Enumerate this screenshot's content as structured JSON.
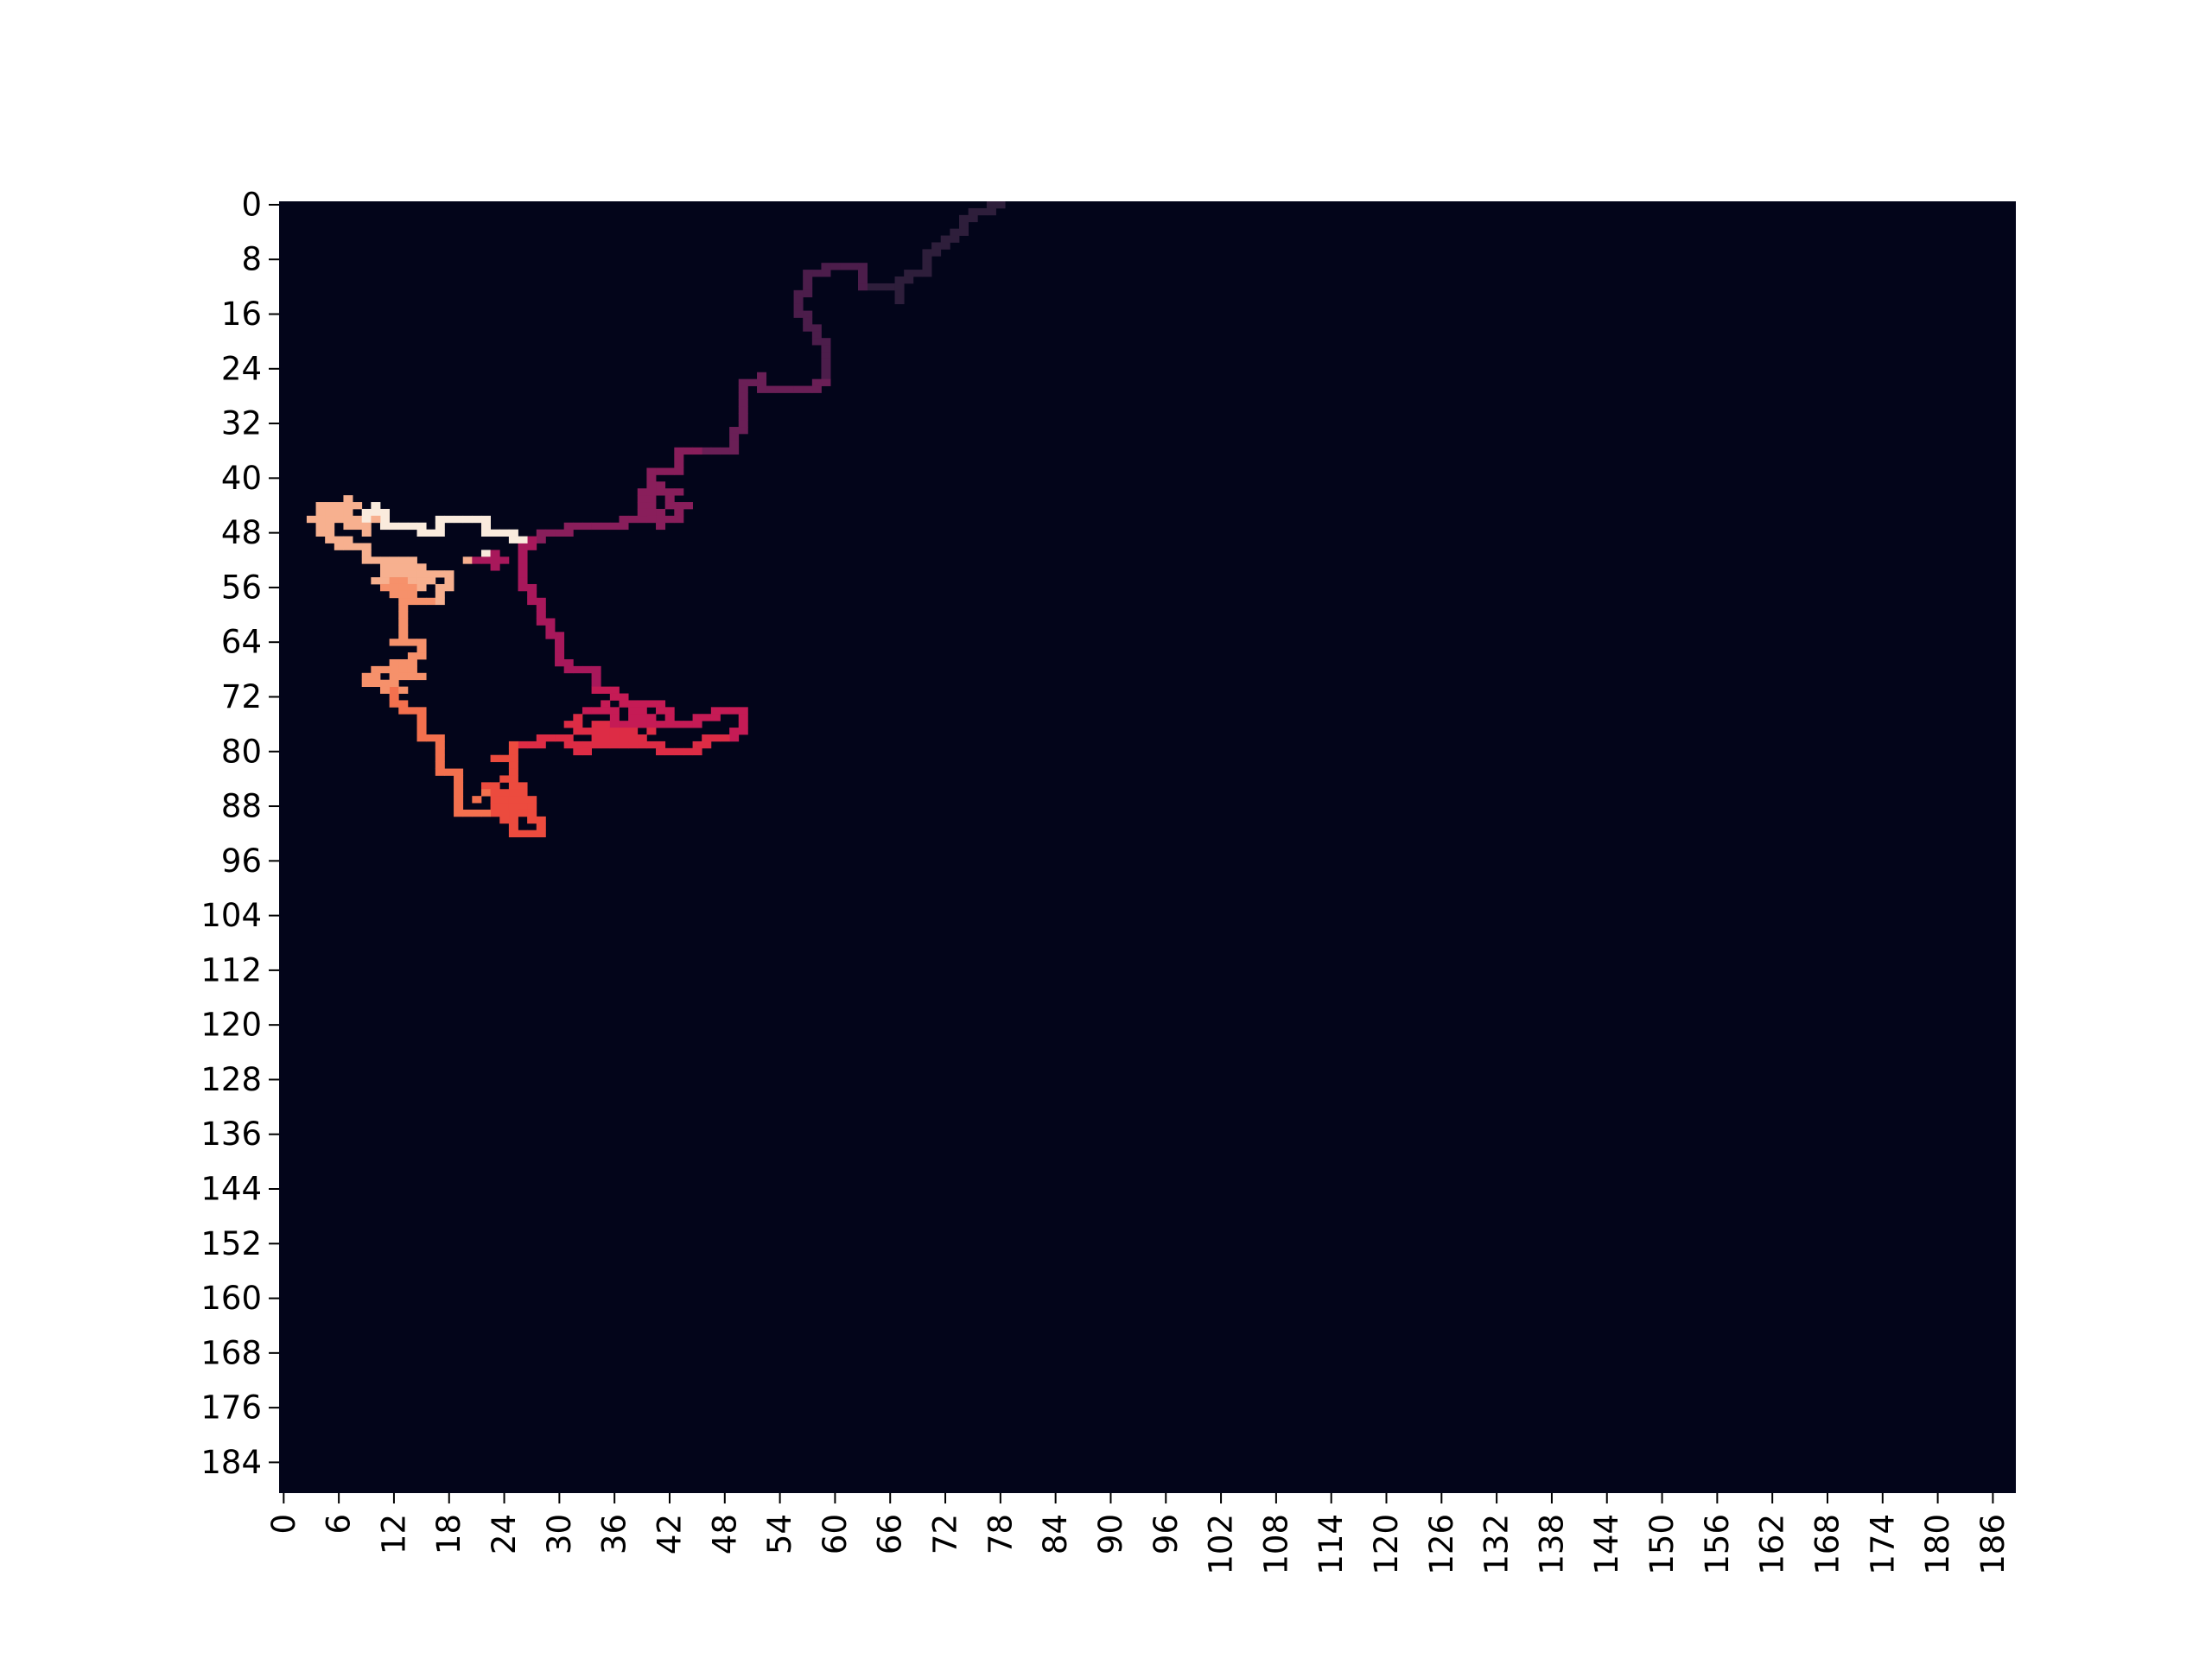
{
  "chart_data": {
    "type": "heatmap",
    "title": "",
    "xlabel": "",
    "ylabel": "",
    "grid": false,
    "legend": "none",
    "n_cols": 189,
    "n_rows": 189,
    "x_ticks": [
      0,
      6,
      12,
      18,
      24,
      30,
      36,
      42,
      48,
      54,
      60,
      66,
      72,
      78,
      84,
      90,
      96,
      102,
      108,
      114,
      120,
      126,
      132,
      138,
      144,
      150,
      156,
      162,
      168,
      174,
      180,
      186
    ],
    "y_ticks": [
      0,
      8,
      16,
      24,
      32,
      40,
      48,
      56,
      64,
      72,
      80,
      88,
      96,
      104,
      112,
      120,
      128,
      136,
      144,
      152,
      160,
      168,
      176,
      184
    ],
    "background_color": "#03051a",
    "colormap": [
      "#03051a",
      "#2e1e3b",
      "#4c1d4b",
      "#6a1f56",
      "#891e5b",
      "#a8185b",
      "#c51b55",
      "#dd2c45",
      "#ec4b3e",
      "#f3704e",
      "#f6916b",
      "#f7b08f",
      "#faebdd"
    ],
    "walk_start": [
      78,
      0
    ],
    "walk_end": [
      26,
      50
    ],
    "walk_waypoints": [
      [
        78,
        0
      ],
      [
        74,
        3
      ],
      [
        71,
        6
      ],
      [
        70,
        10
      ],
      [
        67,
        14
      ],
      [
        63,
        11
      ],
      [
        59,
        9
      ],
      [
        57,
        13
      ],
      [
        56,
        16
      ],
      [
        58,
        20
      ],
      [
        59,
        25
      ],
      [
        55,
        27
      ],
      [
        52,
        25
      ],
      [
        50,
        29
      ],
      [
        49,
        33
      ],
      [
        46,
        36
      ],
      [
        43,
        38
      ],
      [
        40,
        43
      ],
      [
        37,
        46
      ],
      [
        33,
        47
      ],
      [
        28,
        49
      ],
      [
        26,
        55
      ],
      [
        28,
        61
      ],
      [
        30,
        66
      ],
      [
        34,
        71
      ],
      [
        38,
        73
      ],
      [
        42,
        74
      ],
      [
        45,
        76
      ],
      [
        50,
        74
      ],
      [
        46,
        78
      ],
      [
        42,
        80
      ],
      [
        37,
        79
      ],
      [
        33,
        80
      ],
      [
        29,
        78
      ],
      [
        26,
        79
      ],
      [
        23,
        81
      ],
      [
        25,
        85
      ],
      [
        27,
        89
      ],
      [
        28,
        92
      ],
      [
        25,
        91
      ],
      [
        22,
        89
      ],
      [
        19,
        85
      ],
      [
        17,
        81
      ],
      [
        15,
        77
      ],
      [
        13,
        73
      ],
      [
        9,
        70
      ],
      [
        12,
        68
      ],
      [
        15,
        66
      ],
      [
        12,
        64
      ],
      [
        13,
        60
      ],
      [
        16,
        58
      ],
      [
        18,
        55
      ],
      [
        15,
        54
      ],
      [
        11,
        52
      ],
      [
        8,
        50
      ],
      [
        5,
        48
      ],
      [
        8,
        46
      ],
      [
        11,
        45
      ],
      [
        14,
        47
      ],
      [
        17,
        48
      ],
      [
        19,
        46
      ],
      [
        22,
        48
      ],
      [
        26,
        50
      ]
    ],
    "blobs": [
      [
        36,
        76,
        5,
        3
      ],
      [
        41,
        44,
        3,
        3
      ],
      [
        7,
        46,
        4,
        3
      ],
      [
        24,
        87,
        3,
        3
      ],
      [
        13,
        55,
        3,
        3
      ],
      [
        12,
        69,
        3,
        2
      ],
      [
        22,
        52,
        2,
        2
      ]
    ]
  }
}
